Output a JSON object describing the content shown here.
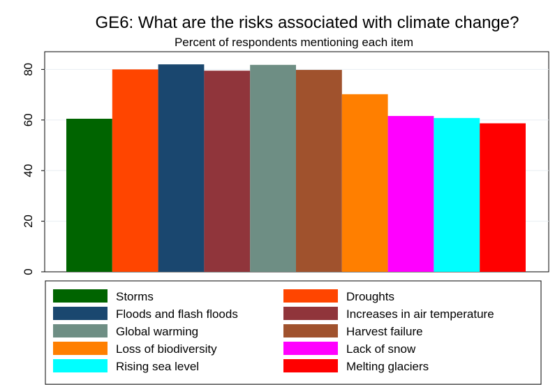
{
  "chart_data": {
    "type": "bar",
    "title": "GE6: What are the risks associated with climate change?",
    "subtitle": "Percent of respondents mentioning each item",
    "xlabel": "",
    "ylabel": "",
    "ylim": [
      0,
      87
    ],
    "yticks": [
      "0",
      "20",
      "40",
      "60",
      "80"
    ],
    "grid": true,
    "legend_position": "bottom",
    "series": [
      {
        "name": "Storms",
        "value": 60.5,
        "color": "#006400"
      },
      {
        "name": "Droughts",
        "value": 80.0,
        "color": "#ff4500"
      },
      {
        "name": "Floods and flash floods",
        "value": 82.0,
        "color": "#1a476f"
      },
      {
        "name": "Increases in air temperature",
        "value": 79.5,
        "color": "#90353b"
      },
      {
        "name": "Global warming",
        "value": 81.8,
        "color": "#6e8e84"
      },
      {
        "name": "Harvest failure",
        "value": 79.8,
        "color": "#a0522d"
      },
      {
        "name": "Loss of biodiversity",
        "value": 70.2,
        "color": "#ff7f00"
      },
      {
        "name": "Lack of snow",
        "value": 61.6,
        "color": "#ff00ff"
      },
      {
        "name": "Rising sea level",
        "value": 60.8,
        "color": "#00ffff"
      },
      {
        "name": "Melting glaciers",
        "value": 58.7,
        "color": "#ff0000"
      }
    ]
  }
}
